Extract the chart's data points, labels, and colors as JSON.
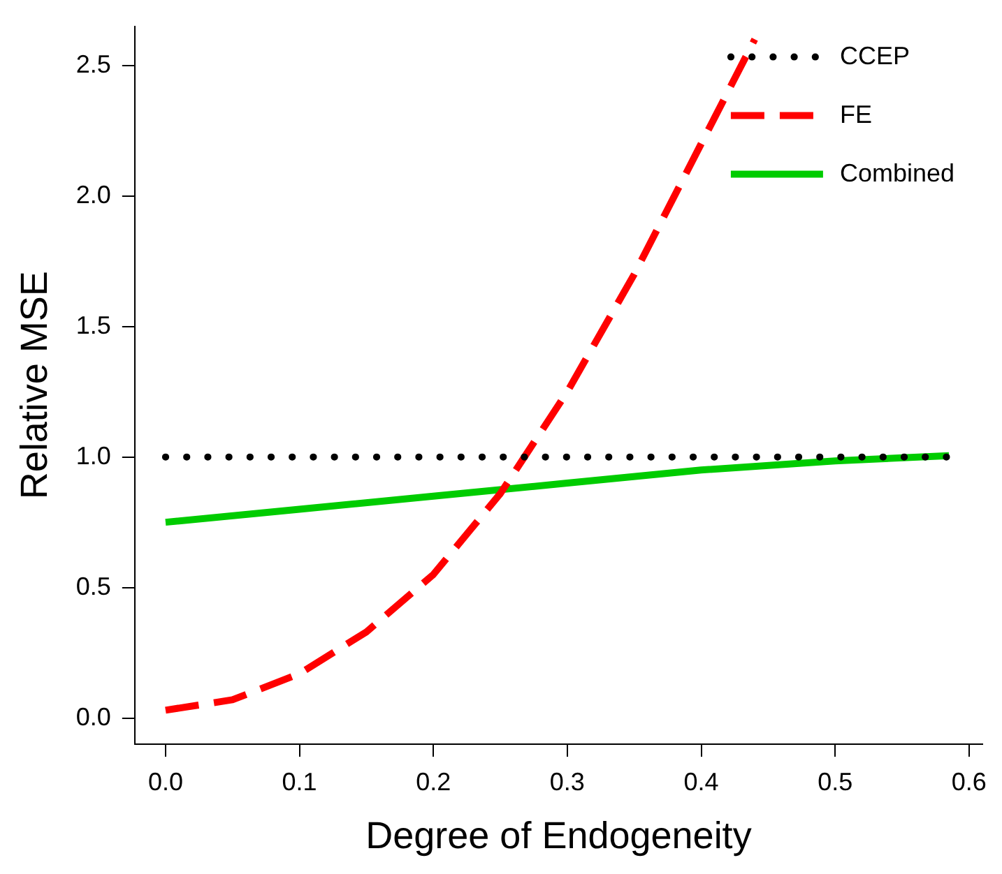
{
  "chart_data": {
    "type": "line",
    "xlabel": "Degree of Endogeneity",
    "ylabel": "Relative MSE",
    "xlim": [
      -0.023,
      0.61
    ],
    "ylim": [
      -0.1,
      2.65
    ],
    "xticks": [
      {
        "value": 0,
        "label": "0.0"
      },
      {
        "value": 0.1,
        "label": "0.1"
      },
      {
        "value": 0.2,
        "label": "0.2"
      },
      {
        "value": 0.3,
        "label": "0.3"
      },
      {
        "value": 0.4,
        "label": "0.4"
      },
      {
        "value": 0.5,
        "label": "0.5"
      },
      {
        "value": 0.6,
        "label": "0.6"
      }
    ],
    "yticks": [
      {
        "value": 0,
        "label": "0.0"
      },
      {
        "value": 0.5,
        "label": "0.5"
      },
      {
        "value": 1,
        "label": "1.0"
      },
      {
        "value": 1.5,
        "label": "1.5"
      },
      {
        "value": 2,
        "label": "2.0"
      },
      {
        "value": 2.5,
        "label": "2.5"
      }
    ],
    "grid": false,
    "legend": "top right",
    "marker": "none",
    "series": [
      {
        "name": "CCEP",
        "color": "#000000",
        "line_style": "dotted",
        "x": [
          0,
          0.585
        ],
        "values": [
          1.0,
          1.0
        ]
      },
      {
        "name": "FE",
        "color": "#ff0000",
        "line_style": "dashed",
        "x": [
          0,
          0.05,
          0.1,
          0.15,
          0.2,
          0.25,
          0.3,
          0.35,
          0.4,
          0.44
        ],
        "values": [
          0.03,
          0.07,
          0.17,
          0.33,
          0.55,
          0.86,
          1.25,
          1.7,
          2.2,
          2.6
        ]
      },
      {
        "name": "Combined",
        "color": "#00cc00",
        "line_style": "solid",
        "x": [
          0,
          0.1,
          0.2,
          0.3,
          0.4,
          0.5,
          0.585
        ],
        "values": [
          0.75,
          0.8,
          0.85,
          0.9,
          0.95,
          0.985,
          1.005
        ]
      }
    ]
  }
}
